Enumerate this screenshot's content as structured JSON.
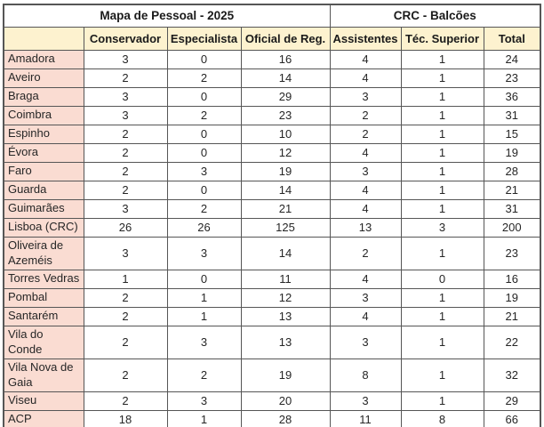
{
  "chart_data": {
    "type": "table",
    "group_headers": [
      {
        "label": "Mapa de Pessoal - 2025",
        "colspan": 4
      },
      {
        "label": "CRC - Balcões",
        "colspan": 3
      }
    ],
    "column_headers": [
      "",
      "Conservador",
      "Especialista",
      "Oficial de Reg.",
      "Assistentes",
      "Téc. Superior",
      "Total"
    ],
    "rows": [
      {
        "label": "Amadora",
        "values": [
          3,
          0,
          16,
          4,
          1,
          24
        ]
      },
      {
        "label": "Aveiro",
        "values": [
          2,
          2,
          14,
          4,
          1,
          23
        ]
      },
      {
        "label": "Braga",
        "values": [
          3,
          0,
          29,
          3,
          1,
          36
        ]
      },
      {
        "label": "Coimbra",
        "values": [
          3,
          2,
          23,
          2,
          1,
          31
        ]
      },
      {
        "label": "Espinho",
        "values": [
          2,
          0,
          10,
          2,
          1,
          15
        ]
      },
      {
        "label": "Évora",
        "values": [
          2,
          0,
          12,
          4,
          1,
          19
        ]
      },
      {
        "label": "Faro",
        "values": [
          2,
          3,
          19,
          3,
          1,
          28
        ]
      },
      {
        "label": "Guarda",
        "values": [
          2,
          0,
          14,
          4,
          1,
          21
        ]
      },
      {
        "label": "Guimarães",
        "values": [
          3,
          2,
          21,
          4,
          1,
          31
        ]
      },
      {
        "label": "Lisboa (CRC)",
        "values": [
          26,
          26,
          125,
          13,
          3,
          200
        ]
      },
      {
        "label": "Oliveira de\nAzeméis",
        "values": [
          3,
          3,
          14,
          2,
          1,
          23
        ]
      },
      {
        "label": "Torres Vedras",
        "values": [
          1,
          0,
          11,
          4,
          0,
          16
        ]
      },
      {
        "label": "Pombal",
        "values": [
          2,
          1,
          12,
          3,
          1,
          19
        ]
      },
      {
        "label": "Santarém",
        "values": [
          2,
          1,
          13,
          4,
          1,
          21
        ]
      },
      {
        "label": "Vila do\nConde",
        "values": [
          2,
          3,
          13,
          3,
          1,
          22
        ]
      },
      {
        "label": "Vila Nova de\nGaia",
        "values": [
          2,
          2,
          19,
          8,
          1,
          32
        ]
      },
      {
        "label": "Viseu",
        "values": [
          2,
          3,
          20,
          3,
          1,
          29
        ]
      },
      {
        "label": "ACP",
        "values": [
          18,
          1,
          28,
          11,
          8,
          66
        ]
      }
    ],
    "colors": {
      "column_header_fill": "#FDF2CF",
      "row_label_fill": "#FADCD2",
      "grid_border": "#565656",
      "text": "#262626"
    }
  }
}
